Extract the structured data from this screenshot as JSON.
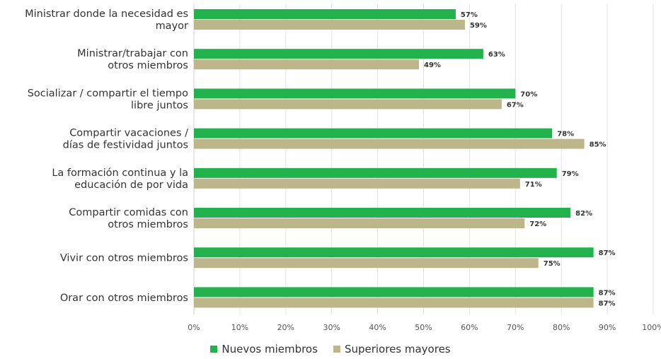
{
  "chart_data": {
    "type": "bar",
    "orientation": "horizontal",
    "categories": [
      [
        "Ministrar donde la necesidad es",
        "mayor"
      ],
      [
        "Ministrar/trabajar con",
        "otros miembros"
      ],
      [
        "Socializar / compartir el tiempo",
        "libre juntos"
      ],
      [
        "Compartir vacaciones /",
        "días de festividad juntos"
      ],
      [
        "La formación continua y la",
        "educación de por vida"
      ],
      [
        "Compartir comidas con",
        "otros miembros"
      ],
      [
        "Vivir con otros miembros"
      ],
      [
        "Orar con otros miembros"
      ]
    ],
    "series": [
      {
        "name": "Nuevos miembros",
        "color": "#22b14c",
        "values": [
          57,
          63,
          70,
          78,
          79,
          82,
          87,
          87
        ]
      },
      {
        "name": "Superiores mayores",
        "color": "#bdb68a",
        "values": [
          59,
          49,
          67,
          85,
          71,
          72,
          75,
          87
        ]
      }
    ],
    "xlim": [
      0,
      100
    ],
    "xticks": [
      0,
      10,
      20,
      30,
      40,
      50,
      60,
      70,
      80,
      90,
      100
    ],
    "tick_suffix": "%",
    "value_suffix": "%",
    "grid": true,
    "legend_position": "bottom"
  }
}
